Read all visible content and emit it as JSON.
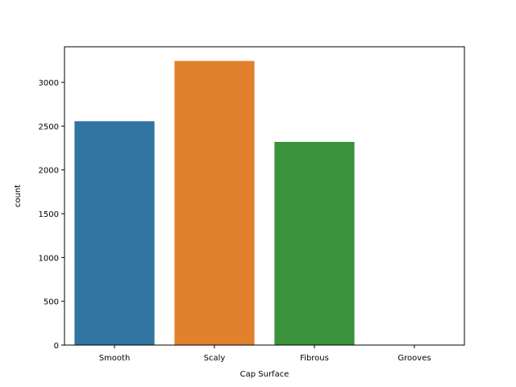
{
  "chart_data": {
    "type": "bar",
    "categories": [
      "Smooth",
      "Scaly",
      "Fibrous",
      "Grooves"
    ],
    "values": [
      2556,
      3244,
      2320,
      4
    ],
    "xlabel": "Cap Surface",
    "ylabel": "count",
    "ylim": [
      0,
      3406
    ],
    "yticks": [
      0,
      500,
      1000,
      1500,
      2000,
      2500,
      3000
    ],
    "colors": [
      "#3274a1",
      "#e1812c",
      "#3a923a",
      "#c03d3e"
    ],
    "grid": false,
    "legend": "none"
  }
}
